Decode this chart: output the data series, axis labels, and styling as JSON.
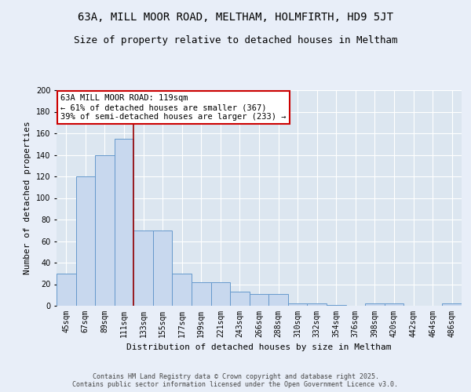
{
  "title": "63A, MILL MOOR ROAD, MELTHAM, HOLMFIRTH, HD9 5JT",
  "subtitle": "Size of property relative to detached houses in Meltham",
  "xlabel": "Distribution of detached houses by size in Meltham",
  "ylabel": "Number of detached properties",
  "bins": [
    "45sqm",
    "67sqm",
    "89sqm",
    "111sqm",
    "133sqm",
    "155sqm",
    "177sqm",
    "199sqm",
    "221sqm",
    "243sqm",
    "266sqm",
    "288sqm",
    "310sqm",
    "332sqm",
    "354sqm",
    "376sqm",
    "398sqm",
    "420sqm",
    "442sqm",
    "464sqm",
    "486sqm"
  ],
  "values": [
    30,
    120,
    140,
    155,
    70,
    70,
    30,
    22,
    22,
    13,
    11,
    11,
    2,
    2,
    1,
    0,
    2,
    2,
    0,
    0,
    2
  ],
  "bar_color": "#c8d8ee",
  "bar_edge_color": "#6699cc",
  "vline_x_index": 3,
  "vline_color": "#990000",
  "annotation_text": "63A MILL MOOR ROAD: 119sqm\n← 61% of detached houses are smaller (367)\n39% of semi-detached houses are larger (233) →",
  "annotation_box_facecolor": "#ffffff",
  "annotation_box_edgecolor": "#cc0000",
  "ylim": [
    0,
    200
  ],
  "yticks": [
    0,
    20,
    40,
    60,
    80,
    100,
    120,
    140,
    160,
    180,
    200
  ],
  "bg_color": "#e8eef8",
  "plot_bg_color": "#dce6f0",
  "grid_color": "#ffffff",
  "footer_text": "Contains HM Land Registry data © Crown copyright and database right 2025.\nContains public sector information licensed under the Open Government Licence v3.0.",
  "title_fontsize": 10,
  "subtitle_fontsize": 9,
  "axis_label_fontsize": 8,
  "tick_fontsize": 7,
  "footer_fontsize": 6
}
